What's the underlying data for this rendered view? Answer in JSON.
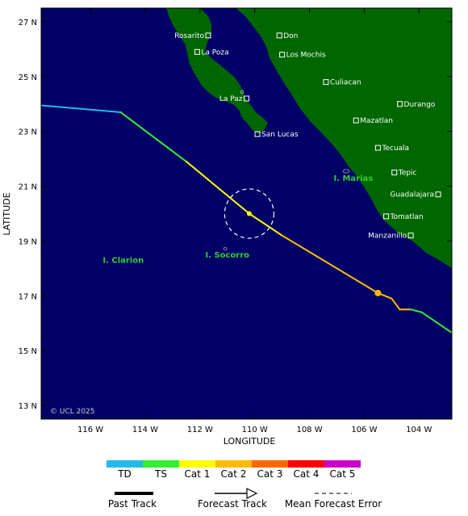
{
  "map": {
    "x_axis_title": "LONGITUDE",
    "y_axis_title": "LATITUDE",
    "lon_ticks": [
      {
        "value": -116,
        "label": "116 W"
      },
      {
        "value": -114,
        "label": "114 W"
      },
      {
        "value": -112,
        "label": "112 W"
      },
      {
        "value": -110,
        "label": "110 W"
      },
      {
        "value": -108,
        "label": "108 W"
      },
      {
        "value": -106,
        "label": "106 W"
      },
      {
        "value": -104,
        "label": "104 W"
      }
    ],
    "lat_ticks": [
      {
        "value": 27,
        "label": "27 N"
      },
      {
        "value": 25,
        "label": "25 N"
      },
      {
        "value": 23,
        "label": "23 N"
      },
      {
        "value": 21,
        "label": "21 N"
      },
      {
        "value": 19,
        "label": "19 N"
      },
      {
        "value": 17,
        "label": "17 N"
      },
      {
        "value": 15,
        "label": "15 N"
      },
      {
        "value": 13,
        "label": "13 N"
      }
    ],
    "lon_range": [
      -117.8,
      -102.8
    ],
    "lat_range": [
      12.5,
      27.5
    ],
    "ocean_color": "#000066",
    "land_color": "#006600",
    "copyright": "© UCL 2025",
    "cities": [
      {
        "name": "Rosarito",
        "lon": -111.7,
        "lat": 26.5,
        "label_side": "left"
      },
      {
        "name": "La Poza",
        "lon": -112.1,
        "lat": 25.9,
        "label_side": "right"
      },
      {
        "name": "Don",
        "lon": -109.1,
        "lat": 26.5,
        "label_side": "right"
      },
      {
        "name": "Los Mochis",
        "lon": -109.0,
        "lat": 25.8,
        "label_side": "right"
      },
      {
        "name": "Culiacan",
        "lon": -107.4,
        "lat": 24.8,
        "label_side": "right"
      },
      {
        "name": "La Paz",
        "lon": -110.3,
        "lat": 24.2,
        "label_side": "left"
      },
      {
        "name": "Durango",
        "lon": -104.7,
        "lat": 24.0,
        "label_side": "right"
      },
      {
        "name": "Mazatlan",
        "lon": -106.3,
        "lat": 23.4,
        "label_side": "right"
      },
      {
        "name": "San Lucas",
        "lon": -109.9,
        "lat": 22.9,
        "label_side": "right"
      },
      {
        "name": "Tecuala",
        "lon": -105.5,
        "lat": 22.4,
        "label_side": "right"
      },
      {
        "name": "Tepic",
        "lon": -104.9,
        "lat": 21.5,
        "label_side": "right"
      },
      {
        "name": "Guadalajara",
        "lon": -103.3,
        "lat": 20.7,
        "label_side": "left"
      },
      {
        "name": "Tomatlan",
        "lon": -105.2,
        "lat": 19.9,
        "label_side": "right"
      },
      {
        "name": "Manzanillo",
        "lon": -104.3,
        "lat": 19.2,
        "label_side": "left"
      }
    ],
    "islands": [
      {
        "name": "I. Marias",
        "lon": -106.4,
        "lat": 21.2
      },
      {
        "name": "I. Socorro",
        "lon": -111.0,
        "lat": 18.4
      },
      {
        "name": "I. Clarion",
        "lon": -114.8,
        "lat": 18.2
      }
    ]
  },
  "track": {
    "past": [
      {
        "lon": -117.8,
        "lat": 23.95,
        "cat": "TD"
      },
      {
        "lon": -114.9,
        "lat": 23.7,
        "cat": "TD"
      },
      {
        "lon": -114.9,
        "lat": 23.7,
        "cat": "TS"
      },
      {
        "lon": -112.5,
        "lat": 21.9,
        "cat": "TS"
      },
      {
        "lon": -112.5,
        "lat": 21.9,
        "cat": "Cat 1"
      },
      {
        "lon": -110.2,
        "lat": 20.0,
        "cat": "Cat 1"
      }
    ],
    "forecast": [
      {
        "lon": -110.2,
        "lat": 20.0,
        "cat": "Cat 1"
      },
      {
        "lon": -109.0,
        "lat": 19.2,
        "cat": "Cat 1"
      },
      {
        "lon": -109.0,
        "lat": 19.2,
        "cat": "Cat 2"
      },
      {
        "lon": -105.5,
        "lat": 17.1,
        "cat": "Cat 2"
      },
      {
        "lon": -105.0,
        "lat": 16.9,
        "cat": "Cat 2"
      },
      {
        "lon": -104.7,
        "lat": 16.5,
        "cat": "Cat 2"
      },
      {
        "lon": -104.3,
        "lat": 16.5,
        "cat": "Cat 2"
      },
      {
        "lon": -104.3,
        "lat": 16.5,
        "cat": "TS"
      },
      {
        "lon": -103.9,
        "lat": 16.4,
        "cat": "TS"
      },
      {
        "lon": -102.8,
        "lat": 15.65,
        "cat": "TS"
      }
    ],
    "markers": [
      {
        "lon": -110.2,
        "lat": 20.0,
        "cat": "Cat 1"
      },
      {
        "lon": -105.5,
        "lat": 17.1,
        "cat": "Cat 2"
      }
    ],
    "error_circle": {
      "lon": -110.2,
      "lat": 20.0,
      "radius_deg": 0.9
    }
  },
  "legend": {
    "categories": [
      {
        "label": "TD",
        "color": "#22bbee"
      },
      {
        "label": "TS",
        "color": "#33ee33"
      },
      {
        "label": "Cat 1",
        "color": "#ffff00"
      },
      {
        "label": "Cat 2",
        "color": "#ffbb00"
      },
      {
        "label": "Cat 3",
        "color": "#ff6600"
      },
      {
        "label": "Cat 4",
        "color": "#ff0000"
      },
      {
        "label": "Cat 5",
        "color": "#cc00cc"
      }
    ],
    "past_track_label": "Past Track",
    "forecast_track_label": "Forecast Track",
    "error_label": "Mean Forecast Error"
  }
}
